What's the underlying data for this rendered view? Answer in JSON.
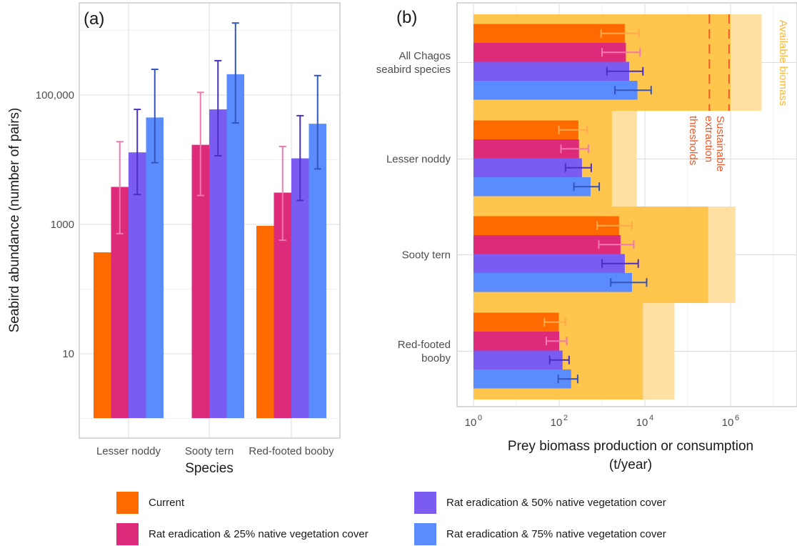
{
  "colors": {
    "current": "#ff6a00",
    "rat25": "#dd2a7b",
    "rat50": "#7b5cf0",
    "rat75": "#5b8cff",
    "err_current": "#ffa94d",
    "err_rat25": "#f07ab0",
    "err_rat50": "#4a2fc0",
    "err_rat75": "#3355bb",
    "available": "#ffc54d",
    "available_light": "#ffe0a3",
    "threshold": "#f0592b"
  },
  "chart_data": [
    {
      "type": "bar",
      "panel_label": "(a)",
      "xlabel": "Species",
      "ylabel": "Seabird abundance (number of pairs)",
      "y_scale": "log10",
      "ylim": [
        1,
        1000000
      ],
      "y_ticks": [
        {
          "value": 10,
          "label": "10"
        },
        {
          "value": 1000,
          "label": "1000"
        },
        {
          "value": 100000,
          "label": "100,000"
        }
      ],
      "categories": [
        "Lesser noddy",
        "Sooty tern",
        "Red-footed booby"
      ],
      "series": [
        {
          "name": "Current",
          "values": [
            370,
            null,
            950
          ],
          "err_low": [
            null,
            null,
            null
          ],
          "err_high": [
            null,
            null,
            null
          ]
        },
        {
          "name": "Rat eradication & 25% native vegetation cover",
          "values": [
            3800,
            17000,
            3100
          ],
          "err_low": [
            720,
            2800,
            570
          ],
          "err_high": [
            19000,
            110000,
            16000
          ]
        },
        {
          "name": "Rat eradication & 50% native vegetation cover",
          "values": [
            13000,
            60000,
            10500
          ],
          "err_low": [
            2900,
            11500,
            2350
          ],
          "err_high": [
            60000,
            340000,
            48000
          ]
        },
        {
          "name": "Rat eradication & 75% native vegetation cover",
          "values": [
            45000,
            210000,
            36000
          ],
          "err_low": [
            9000,
            37000,
            7200
          ],
          "err_high": [
            250000,
            1300000,
            200000
          ]
        }
      ]
    },
    {
      "type": "bar",
      "orientation": "horizontal",
      "panel_label": "(b)",
      "xlabel": "Prey biomass production or consumption (t/year)",
      "x_scale": "log10",
      "xlim": [
        1,
        100000000
      ],
      "x_ticks": [
        {
          "value": 1,
          "base": "10",
          "exp": "0"
        },
        {
          "value": 100,
          "base": "10",
          "exp": "2"
        },
        {
          "value": 10000,
          "base": "10",
          "exp": "4"
        },
        {
          "value": 1000000,
          "base": "10",
          "exp": "6"
        }
      ],
      "categories": [
        {
          "lines": [
            "All Chagos",
            "seabird species"
          ]
        },
        {
          "lines": [
            "Lesser noddy"
          ]
        },
        {
          "lines": [
            "Sooty tern"
          ]
        },
        {
          "lines": [
            "Red-footed",
            "booby"
          ]
        }
      ],
      "available_biomass": [
        {
          "sustainable": 1000000,
          "total": 5300000
        },
        {
          "sustainable": 1700,
          "total": 6500
        },
        {
          "sustainable": 300000,
          "total": 1300000
        },
        {
          "sustainable": 9000,
          "total": 49000
        }
      ],
      "available_label": "Available biomass",
      "thresholds": {
        "lines": [
          320000,
          920000
        ]
      },
      "threshold_label_lines": [
        "extraction",
        "thresholds"
      ],
      "sustainable_label": "Sustainable",
      "series": [
        {
          "name": "Current",
          "values": [
            3400,
            280,
            2500,
            98
          ],
          "err_low": [
            950,
            98,
            770,
            45
          ],
          "err_high": [
            7300,
            450,
            5000,
            140
          ]
        },
        {
          "name": "Rat eradication & 25% native vegetation cover",
          "values": [
            3600,
            290,
            2700,
            100
          ],
          "err_low": [
            1000,
            110,
            840,
            50
          ],
          "err_high": [
            7700,
            480,
            5500,
            150
          ]
        },
        {
          "name": "Rat eradication & 50% native vegetation cover",
          "values": [
            4300,
            340,
            3400,
            120
          ],
          "err_low": [
            1300,
            140,
            1000,
            60
          ],
          "err_high": [
            9000,
            560,
            7000,
            170
          ]
        },
        {
          "name": "Rat eradication & 75% native vegetation cover",
          "values": [
            6700,
            540,
            5000,
            190
          ],
          "err_low": [
            2000,
            220,
            1600,
            95
          ],
          "err_high": [
            14000,
            860,
            11000,
            270
          ]
        }
      ]
    }
  ],
  "legend": [
    {
      "key": "current",
      "label": "Current"
    },
    {
      "key": "rat50",
      "label": "Rat eradication & 50% native vegetation cover"
    },
    {
      "key": "rat25",
      "label": "Rat eradication & 25% native vegetation cover"
    },
    {
      "key": "rat75",
      "label": "Rat eradication & 75% native vegetation cover"
    }
  ]
}
